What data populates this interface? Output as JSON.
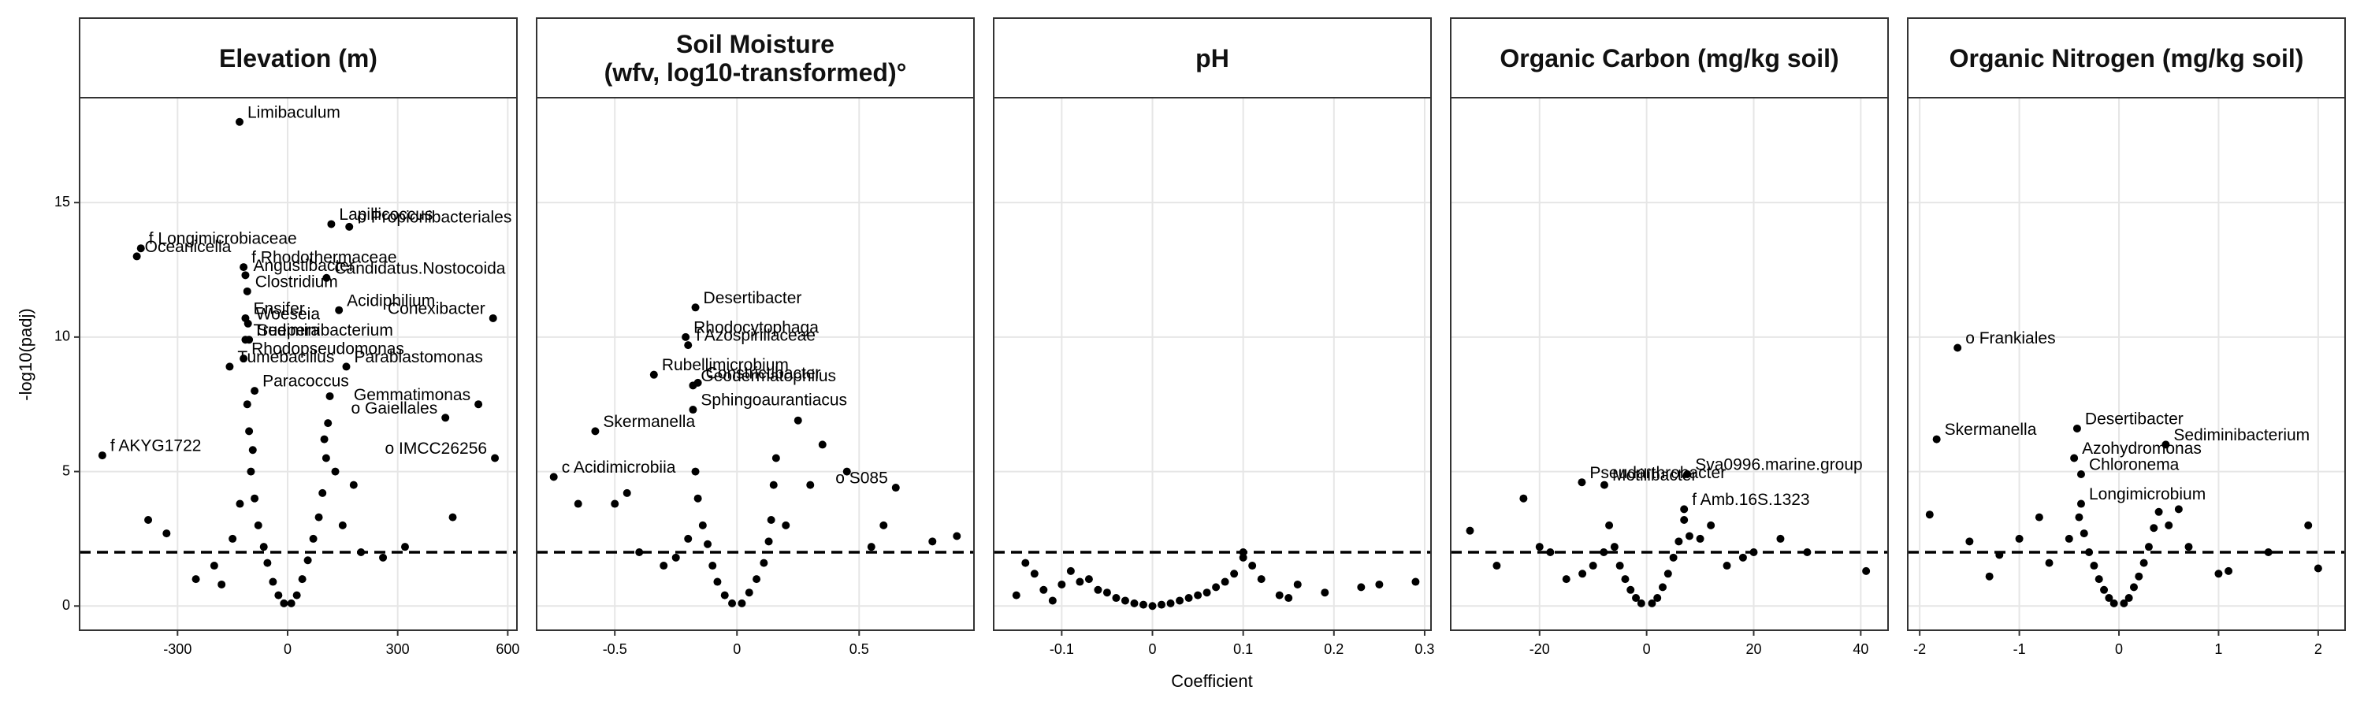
{
  "x_label": "Coefficient",
  "y_label": "-log10(padj)",
  "chart_data": [
    {
      "type": "scatter",
      "title": "Elevation (m)",
      "xlim": [
        -567,
        625
      ],
      "xticks": [
        -300,
        0,
        300,
        600
      ],
      "ylim": [
        -0.9,
        18.9
      ],
      "yticks": [
        0,
        5,
        10,
        15
      ],
      "hline": 2,
      "grid": true,
      "series": [
        {
          "color": "#000000",
          "x": [
            -10,
            10,
            -25,
            25,
            -40,
            40,
            -55,
            55,
            -65,
            70,
            -80,
            85,
            -90,
            95,
            -100,
            105,
            -105,
            110,
            -110,
            115,
            -150,
            150,
            -200,
            200,
            -250,
            260,
            -330,
            320,
            -380,
            450,
            -180,
            180,
            -130,
            130,
            -95,
            100
          ],
          "values": [
            0.1,
            0.1,
            0.4,
            0.4,
            0.9,
            1.0,
            1.6,
            1.7,
            2.2,
            2.5,
            3.0,
            3.3,
            4.0,
            4.2,
            5.0,
            5.5,
            6.5,
            6.8,
            7.5,
            7.8,
            2.5,
            3.0,
            1.5,
            2.0,
            1.0,
            1.8,
            2.7,
            2.2,
            3.2,
            3.3,
            0.8,
            4.5,
            3.8,
            5.0,
            5.8,
            6.2
          ]
        },
        {
          "color": "#000000",
          "labels": [
            "Limibaculum",
            "Lapillicoccus",
            "o Propionibacteriales",
            "f Longimicrobiaceae",
            "Oceanicella",
            "f Rhodothermaceae",
            "Angustibacter",
            "Candidatus.Nostocoida",
            "Clostridium",
            "Conexibacter",
            "Acidiphilium",
            "Ensifer",
            "Woeseia",
            "Truepera",
            "Sediminibacterium",
            "Tumebacillus",
            "Rhodopseudomonas",
            "Parablastomonas",
            "Paracoccus",
            "Gemmatimonas",
            "o Gaiellales",
            "o IMCC26256",
            "f AKYG1722"
          ],
          "x": [
            -131,
            119,
            168,
            -400,
            -411,
            -120,
            -115,
            106,
            -110,
            560,
            140,
            -115,
            -108,
            -115,
            -105,
            -158,
            -120,
            160,
            -90,
            520,
            430,
            565,
            -505
          ],
          "values": [
            18.0,
            14.2,
            14.1,
            13.3,
            13.0,
            12.6,
            12.3,
            12.2,
            11.7,
            10.7,
            11.0,
            10.7,
            10.5,
            9.9,
            9.9,
            8.9,
            9.2,
            8.9,
            8.0,
            7.5,
            7.0,
            5.5,
            5.6
          ]
        }
      ]
    },
    {
      "type": "scatter",
      "title": "Soil Moisture\n(wfv, log10-transformed)°",
      "xlim": [
        -0.82,
        0.97
      ],
      "xticks": [
        -0.5,
        0,
        0.5
      ],
      "ylim": [
        -0.9,
        18.9
      ],
      "yticks": [
        0,
        5,
        10,
        15
      ],
      "hline": 2,
      "grid": true,
      "series": [
        {
          "color": "#000000",
          "x": [
            -0.02,
            0.02,
            -0.05,
            0.05,
            -0.08,
            0.08,
            -0.1,
            0.11,
            -0.12,
            0.13,
            -0.14,
            0.14,
            -0.16,
            0.15,
            -0.17,
            0.16,
            -0.2,
            0.2,
            -0.3,
            0.3,
            -0.4,
            0.35,
            -0.5,
            0.45,
            0.55,
            0.6,
            0.8,
            0.9,
            -0.65,
            -0.45,
            0.25,
            -0.25
          ],
          "values": [
            0.1,
            0.1,
            0.4,
            0.5,
            0.9,
            1.0,
            1.5,
            1.6,
            2.3,
            2.4,
            3.0,
            3.2,
            4.0,
            4.5,
            5.0,
            5.5,
            2.5,
            3.0,
            1.5,
            4.5,
            2.0,
            6.0,
            3.8,
            5.0,
            2.2,
            3.0,
            2.4,
            2.6,
            3.8,
            4.2,
            6.9,
            1.8
          ]
        },
        {
          "color": "#000000",
          "labels": [
            "Desertibacter",
            "Rhodocytophaga",
            "f Azospirillaceae",
            "Rubellimicrobium",
            "Constrictibacter",
            "Geodermatophilus",
            "Sphingoaurantiacus",
            "Skermanella",
            "c Acidimicrobiia",
            "o S085"
          ],
          "x": [
            -0.17,
            -0.21,
            -0.2,
            -0.34,
            -0.16,
            -0.18,
            -0.18,
            -0.58,
            -0.75,
            0.65
          ],
          "values": [
            11.1,
            10.0,
            9.7,
            8.6,
            8.3,
            8.2,
            7.3,
            6.5,
            4.8,
            4.4
          ]
        }
      ]
    },
    {
      "type": "scatter",
      "title": "pH",
      "xlim": [
        -0.175,
        0.307
      ],
      "xticks": [
        -0.1,
        0,
        0.1,
        0.2,
        0.3
      ],
      "ylim": [
        -0.9,
        18.9
      ],
      "yticks": [
        0,
        5,
        10,
        15
      ],
      "hline": 2,
      "grid": true,
      "series": [
        {
          "color": "#000000",
          "x": [
            -0.15,
            -0.13,
            -0.12,
            -0.1,
            -0.09,
            -0.08,
            -0.07,
            -0.06,
            -0.05,
            -0.04,
            -0.03,
            -0.02,
            -0.01,
            0,
            0.01,
            0.02,
            0.03,
            0.04,
            0.05,
            0.06,
            0.07,
            0.08,
            0.09,
            0.1,
            0.11,
            0.12,
            0.14,
            0.16,
            0.19,
            0.23,
            0.25,
            0.29,
            -0.14,
            -0.11,
            0.1,
            0.15
          ],
          "values": [
            0.4,
            1.2,
            0.6,
            0.8,
            1.3,
            0.9,
            1.0,
            0.6,
            0.5,
            0.3,
            0.2,
            0.1,
            0.05,
            0,
            0.05,
            0.1,
            0.2,
            0.3,
            0.4,
            0.5,
            0.7,
            0.9,
            1.2,
            2.0,
            1.5,
            1.0,
            0.4,
            0.8,
            0.5,
            0.7,
            0.8,
            0.9,
            1.6,
            0.2,
            1.8,
            0.3
          ]
        }
      ]
    },
    {
      "type": "scatter",
      "title": "Organic Carbon (mg/kg soil)",
      "xlim": [
        -36.6,
        45.1
      ],
      "xticks": [
        -20,
        0,
        20,
        40
      ],
      "ylim": [
        -0.9,
        18.9
      ],
      "yticks": [
        0,
        5,
        10,
        15
      ],
      "hline": 2,
      "grid": true,
      "series": [
        {
          "color": "#000000",
          "x": [
            -1,
            1,
            -2,
            2,
            -3,
            3,
            -4,
            4,
            -5,
            5,
            -6,
            6,
            -7,
            7,
            -8,
            8,
            -10,
            10,
            -15,
            15,
            -20,
            20,
            -23,
            25,
            -28,
            30,
            -33,
            41,
            -12,
            12,
            -18,
            18
          ],
          "values": [
            0.1,
            0.1,
            0.3,
            0.3,
            0.6,
            0.7,
            1.0,
            1.2,
            1.5,
            1.8,
            2.2,
            2.4,
            3.0,
            3.2,
            2.0,
            2.6,
            1.5,
            2.5,
            1.0,
            1.5,
            2.2,
            2.0,
            4.0,
            2.5,
            1.5,
            2.0,
            2.8,
            1.3,
            1.2,
            3.0,
            2.0,
            1.8
          ]
        },
        {
          "color": "#000000",
          "labels": [
            "Pseudarthrobacter",
            "Motilibacter",
            "Sva0996.marine.group",
            "f Amb.16S.1323"
          ],
          "x": [
            -12.1,
            -7.9,
            7.6,
            7.0
          ],
          "values": [
            4.6,
            4.5,
            4.9,
            3.6
          ]
        }
      ]
    },
    {
      "type": "scatter",
      "title": "Organic Nitrogen (mg/kg soil)",
      "xlim": [
        -2.12,
        2.27
      ],
      "xticks": [
        -2,
        -1,
        0,
        1,
        2
      ],
      "ylim": [
        -0.9,
        18.9
      ],
      "yticks": [
        0,
        5,
        10,
        15
      ],
      "hline": 2,
      "grid": true,
      "series": [
        {
          "color": "#000000",
          "x": [
            -0.05,
            0.05,
            -0.1,
            0.1,
            -0.15,
            0.15,
            -0.2,
            0.2,
            -0.25,
            0.25,
            -0.3,
            0.3,
            -0.35,
            0.35,
            -0.4,
            0.4,
            -0.5,
            0.5,
            -0.7,
            0.7,
            -1,
            1,
            -1.2,
            1.1,
            -1.5,
            1.5,
            -1.9,
            1.9,
            2.0,
            -0.8,
            0.6,
            -1.3
          ],
          "values": [
            0.1,
            0.1,
            0.3,
            0.3,
            0.6,
            0.7,
            1.0,
            1.1,
            1.5,
            1.6,
            2.0,
            2.2,
            2.7,
            2.9,
            3.3,
            3.5,
            2.5,
            3.0,
            1.6,
            2.2,
            2.5,
            1.2,
            1.9,
            1.3,
            2.4,
            2.0,
            3.4,
            3.0,
            1.4,
            3.3,
            3.6,
            1.1
          ]
        },
        {
          "color": "#000000",
          "labels": [
            "o Frankiales",
            "Desertibacter",
            "Skermanella",
            "Azohydromonas",
            "Sediminibacterium",
            "Chloronema",
            "Longimicrobium"
          ],
          "x": [
            -1.62,
            -0.42,
            -1.83,
            -0.45,
            0.47,
            -0.38,
            -0.38
          ],
          "values": [
            9.6,
            6.6,
            6.2,
            5.5,
            6.0,
            4.9,
            3.8
          ]
        }
      ]
    }
  ]
}
